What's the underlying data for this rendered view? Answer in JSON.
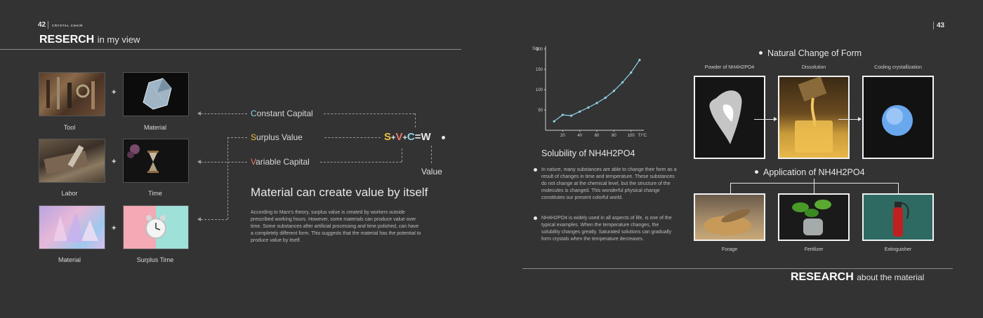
{
  "left_page": {
    "page_number": "42",
    "running_head": "CRYSTAL CHAIR",
    "title_bold": "RESERCH",
    "title_light": "in my view",
    "images": [
      {
        "caption": "Tool"
      },
      {
        "caption": "Material"
      },
      {
        "caption": "Labor"
      },
      {
        "caption": "Time"
      },
      {
        "caption": "Material"
      },
      {
        "caption": "Surplus Time"
      }
    ],
    "plus_sign": "+",
    "terms": [
      {
        "initial": "C",
        "rest": "onstant Capital"
      },
      {
        "initial": "S",
        "rest": "urplus Value"
      },
      {
        "initial": "V",
        "rest": "ariable Capital"
      }
    ],
    "formula": {
      "s": "S",
      "p1": "+",
      "v": "V",
      "p2": "+",
      "c": "C",
      "eq": "=",
      "w": "W"
    },
    "value_label": "Value",
    "headline": "Material can create value by itself",
    "paragraph": "According to Marx's theory, surplus value is created by workers outside prescribed working hours. However, some materials can produce value over time. Some substances after artificial processing and time polished, can have a completely different form. This suggests that the material has the potential to produce value by itself.",
    "colors": {
      "constant": "#8fd3e8",
      "surplus": "#f0c040",
      "variable": "#e77a6a"
    }
  },
  "right_page": {
    "page_number": "43",
    "chart_data": {
      "type": "line",
      "title": "Solubility of NH4H2PO4",
      "xlabel": "T/°C",
      "ylabel": "S/g",
      "x": [
        10,
        20,
        30,
        40,
        50,
        60,
        70,
        80,
        90,
        100,
        110
      ],
      "values": [
        22,
        38,
        36,
        46,
        56,
        67,
        80,
        97,
        118,
        142,
        173
      ],
      "xticks": [
        20,
        40,
        60,
        80,
        100
      ],
      "yticks": [
        50,
        100,
        150,
        200
      ],
      "xlim": [
        0,
        115
      ],
      "ylim": [
        0,
        200
      ],
      "color": "#8fd3e8"
    },
    "bullets": [
      "In nature, many substances are able to change their form as a result of changes in time and temperature. These substances do not change at the chemical level, but the structure of the molecules is changed. This wonderful physical change constitutes our present colorful world.",
      "NH4H2PO4 is widely used in all aspects of life, is one of the typical examples. When the temperature changes, the solubility changes greatly. Saturated solutions can gradually form crystals when the temperature decreases."
    ],
    "natural_change": {
      "heading": "Natural Change of Form",
      "steps": [
        "Powder of NH4H2PO4",
        "Dissolution",
        "Cooling crystallization"
      ]
    },
    "application": {
      "heading": "Application of NH4H2PO4",
      "items": [
        "Forage",
        "Fertilizer",
        "Extinguisher"
      ]
    },
    "footer_bold": "RESEARCH",
    "footer_light": "about the material"
  }
}
